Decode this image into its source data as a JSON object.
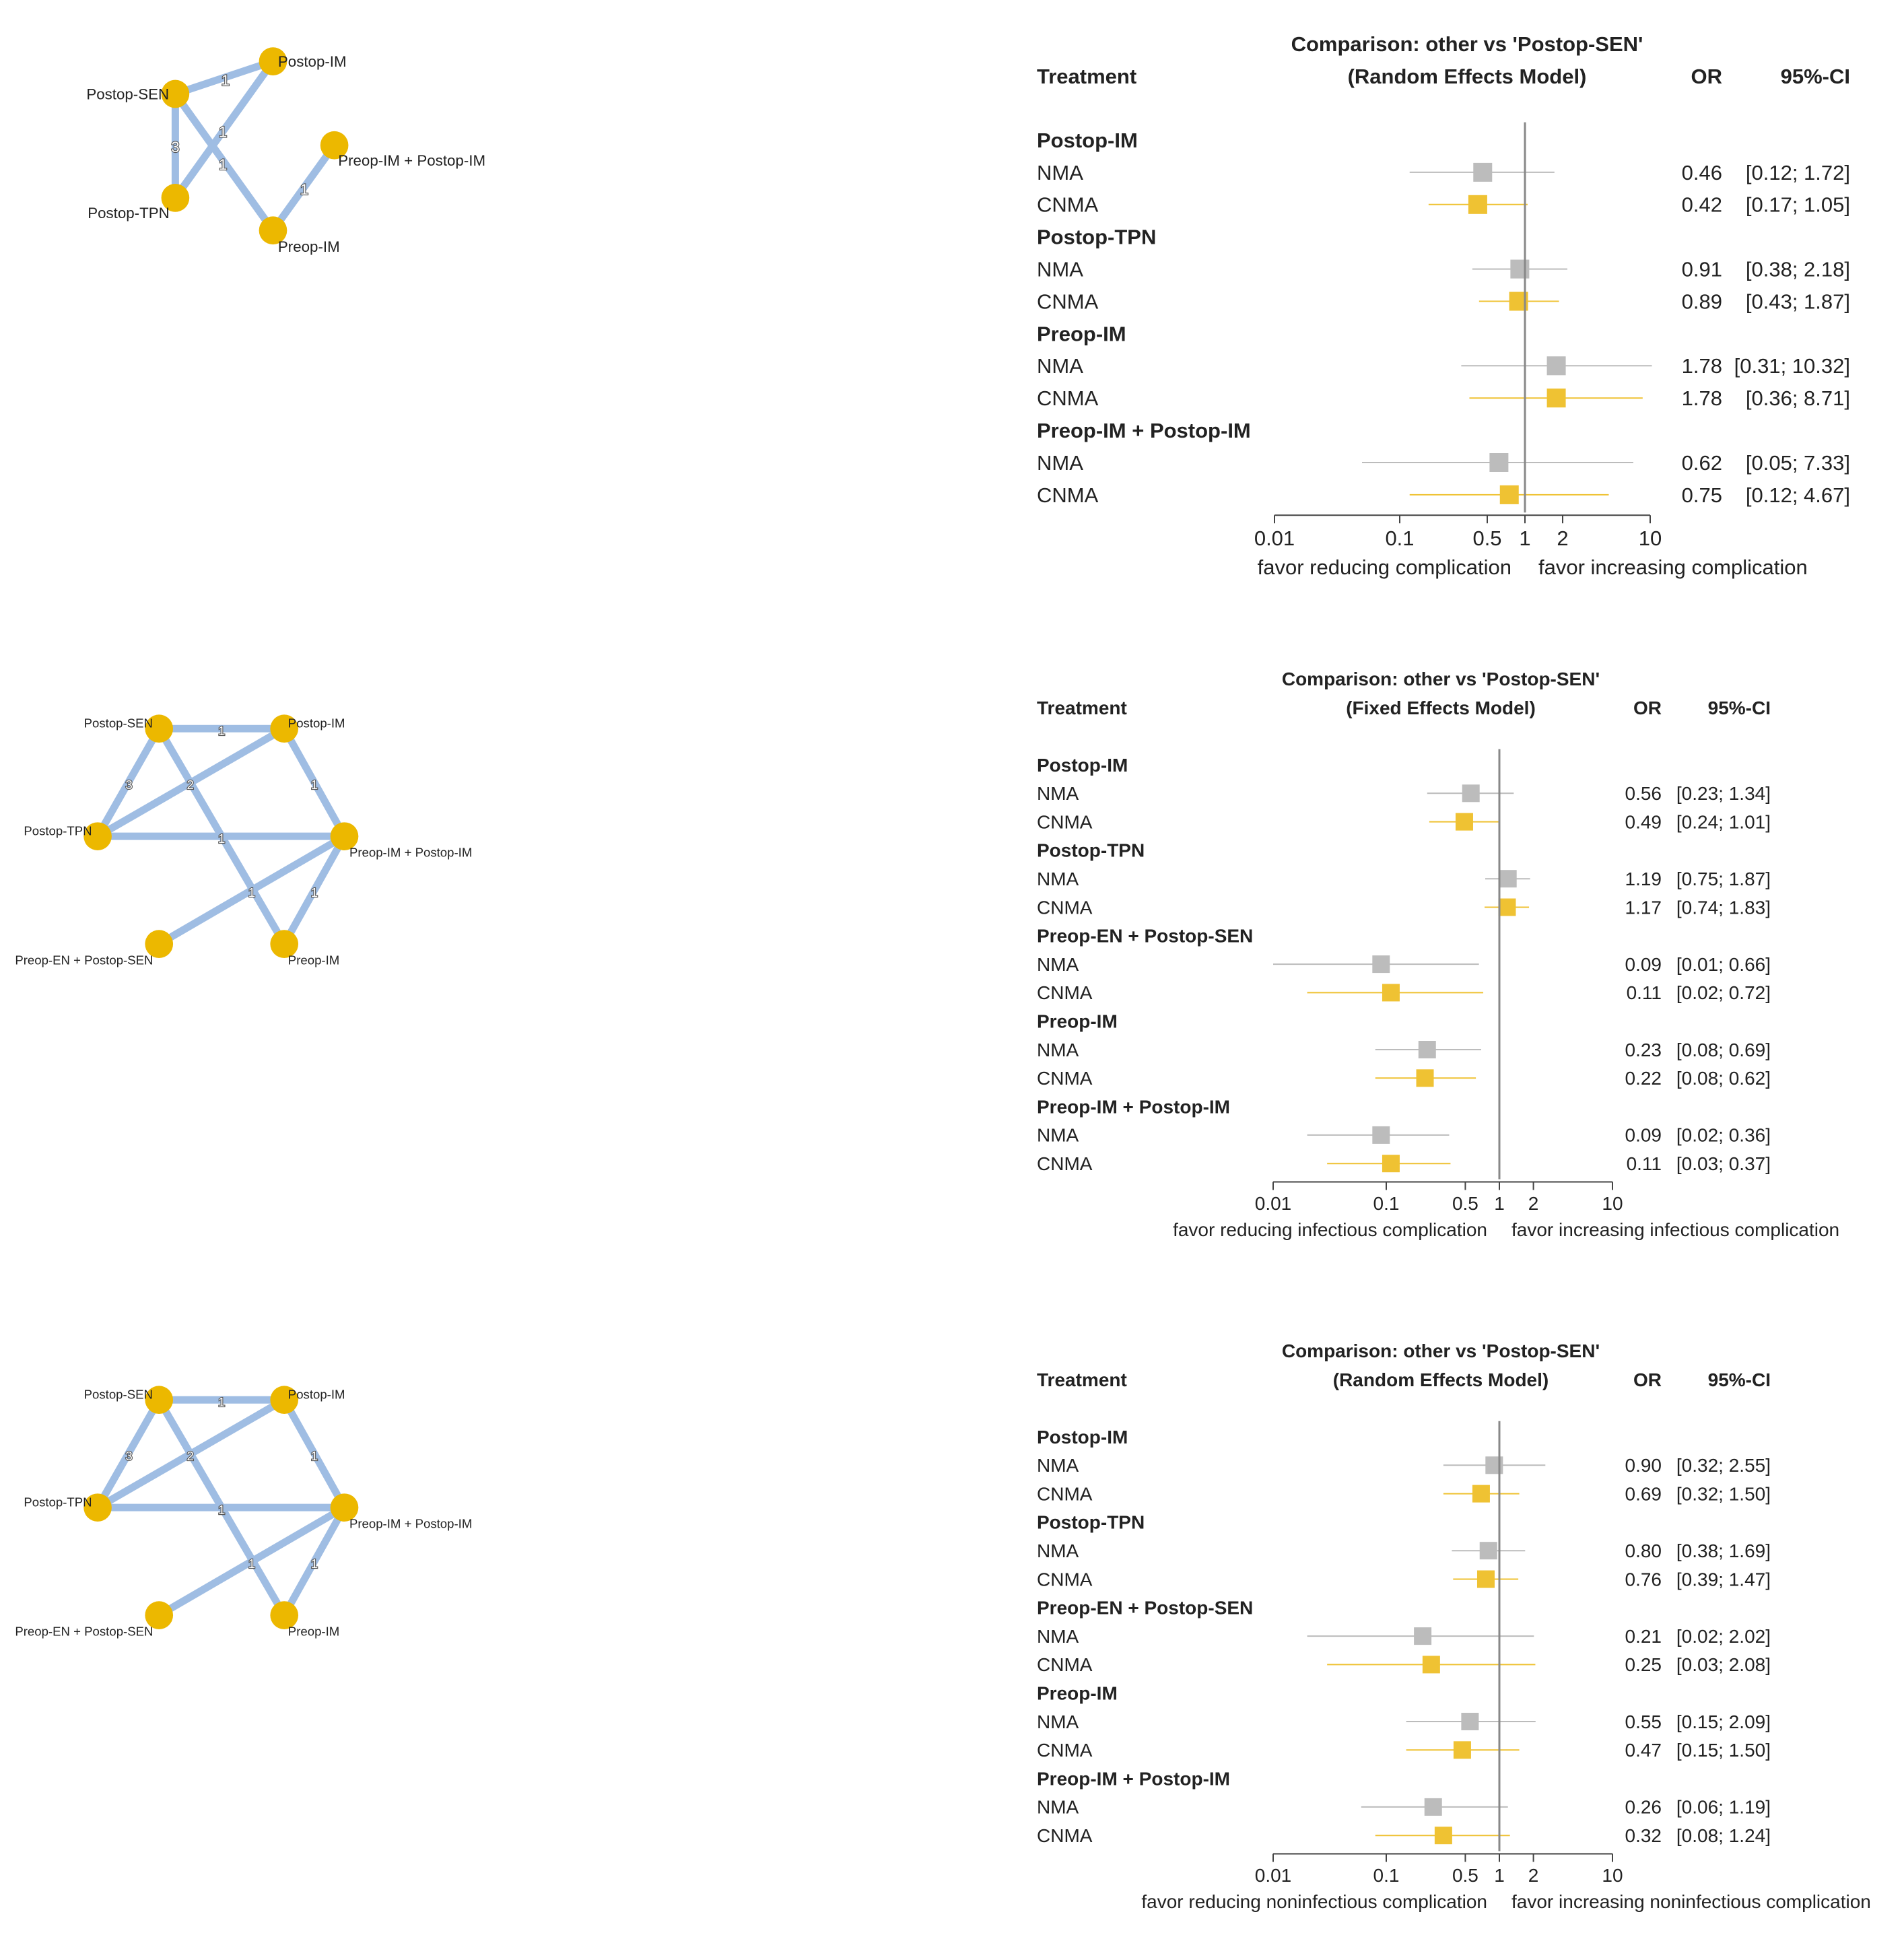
{
  "colors": {
    "edge": "#9fbde3",
    "node": "#ecb800",
    "nma": "#bcbcbc",
    "cnma": "#efc233",
    "axis": "#444444",
    "ref_line": "#888888",
    "text": "#222222"
  },
  "chart_data": [
    {
      "type": "network",
      "panel": "A",
      "nodes": [
        "Postop-SEN",
        "Postop-IM",
        "Postop-TPN",
        "Preop-IM",
        "Preop-IM + Postop-IM"
      ],
      "edges": [
        {
          "from": "Postop-SEN",
          "to": "Postop-IM",
          "label": "1"
        },
        {
          "from": "Postop-SEN",
          "to": "Postop-TPN",
          "label": "3"
        },
        {
          "from": "Postop-SEN",
          "to": "Preop-IM",
          "label": "1"
        },
        {
          "from": "Postop-TPN",
          "to": "Postop-IM",
          "label": "1"
        },
        {
          "from": "Preop-IM",
          "to": "Preop-IM + Postop-IM",
          "label": "1"
        }
      ]
    },
    {
      "type": "forest",
      "panel": "A",
      "title": "Comparison: other vs 'Postop-SEN'",
      "subtitle": "(Random Effects Model)",
      "col_treatment": "Treatment",
      "col_or": "OR",
      "col_ci": "95%-CI",
      "xscale": "log",
      "xlim": [
        0.01,
        10
      ],
      "xticks": [
        "0.01",
        "0.1",
        "0.5",
        "1",
        "2",
        "10"
      ],
      "xlabel_left": "favor reducing complication",
      "xlabel_right": "favor increasing complication",
      "groups": [
        {
          "name": "Postop-IM",
          "rows": [
            {
              "method": "NMA",
              "or": 0.46,
              "lo": 0.12,
              "hi": 1.72,
              "or_text": "0.46",
              "ci_text": "[0.12;  1.72]"
            },
            {
              "method": "CNMA",
              "or": 0.42,
              "lo": 0.17,
              "hi": 1.05,
              "or_text": "0.42",
              "ci_text": "[0.17;  1.05]"
            }
          ]
        },
        {
          "name": "Postop-TPN",
          "rows": [
            {
              "method": "NMA",
              "or": 0.91,
              "lo": 0.38,
              "hi": 2.18,
              "or_text": "0.91",
              "ci_text": "[0.38;  2.18]"
            },
            {
              "method": "CNMA",
              "or": 0.89,
              "lo": 0.43,
              "hi": 1.87,
              "or_text": "0.89",
              "ci_text": "[0.43;  1.87]"
            }
          ]
        },
        {
          "name": "Preop-IM",
          "rows": [
            {
              "method": "NMA",
              "or": 1.78,
              "lo": 0.31,
              "hi": 10.32,
              "or_text": "1.78",
              "ci_text": "[0.31; 10.32]"
            },
            {
              "method": "CNMA",
              "or": 1.78,
              "lo": 0.36,
              "hi": 8.71,
              "or_text": "1.78",
              "ci_text": "[0.36;  8.71]"
            }
          ]
        },
        {
          "name": "Preop-IM + Postop-IM",
          "rows": [
            {
              "method": "NMA",
              "or": 0.62,
              "lo": 0.05,
              "hi": 7.33,
              "or_text": "0.62",
              "ci_text": "[0.05;  7.33]"
            },
            {
              "method": "CNMA",
              "or": 0.75,
              "lo": 0.12,
              "hi": 4.67,
              "or_text": "0.75",
              "ci_text": "[0.12;  4.67]"
            }
          ]
        }
      ]
    },
    {
      "type": "network",
      "panel": "B",
      "nodes": [
        "Postop-SEN",
        "Postop-IM",
        "Postop-TPN",
        "Preop-IM + Postop-IM",
        "Preop-EN + Postop-SEN",
        "Preop-IM"
      ],
      "edges": [
        {
          "from": "Postop-SEN",
          "to": "Postop-IM",
          "label": "1"
        },
        {
          "from": "Postop-SEN",
          "to": "Postop-TPN",
          "label": "3"
        },
        {
          "from": "Postop-SEN",
          "to": "Preop-IM",
          "label": "1"
        },
        {
          "from": "Postop-TPN",
          "to": "Postop-IM",
          "label": "2"
        },
        {
          "from": "Postop-TPN",
          "to": "Preop-IM + Postop-IM",
          "label": "1"
        },
        {
          "from": "Postop-IM",
          "to": "Preop-IM + Postop-IM",
          "label": "1"
        },
        {
          "from": "Preop-EN + Postop-SEN",
          "to": "Preop-IM + Postop-IM",
          "label": "1"
        },
        {
          "from": "Preop-IM",
          "to": "Preop-IM + Postop-IM",
          "label": "1"
        }
      ]
    },
    {
      "type": "forest",
      "panel": "B",
      "title": "Comparison: other vs 'Postop-SEN'",
      "subtitle": "(Fixed Effects Model)",
      "col_treatment": "Treatment",
      "col_or": "OR",
      "col_ci": "95%-CI",
      "xscale": "log",
      "xlim": [
        0.01,
        10
      ],
      "xticks": [
        "0.01",
        "0.1",
        "0.5",
        "1",
        "2",
        "10"
      ],
      "xlabel_left": "favor reducing infectious complication",
      "xlabel_right": "favor increasing infectious complication",
      "groups": [
        {
          "name": "Postop-IM",
          "rows": [
            {
              "method": "NMA",
              "or": 0.56,
              "lo": 0.23,
              "hi": 1.34,
              "or_text": "0.56",
              "ci_text": "[0.23; 1.34]"
            },
            {
              "method": "CNMA",
              "or": 0.49,
              "lo": 0.24,
              "hi": 1.01,
              "or_text": "0.49",
              "ci_text": "[0.24; 1.01]"
            }
          ]
        },
        {
          "name": "Postop-TPN",
          "rows": [
            {
              "method": "NMA",
              "or": 1.19,
              "lo": 0.75,
              "hi": 1.87,
              "or_text": "1.19",
              "ci_text": "[0.75; 1.87]"
            },
            {
              "method": "CNMA",
              "or": 1.17,
              "lo": 0.74,
              "hi": 1.83,
              "or_text": "1.17",
              "ci_text": "[0.74; 1.83]"
            }
          ]
        },
        {
          "name": "Preop-EN + Postop-SEN",
          "rows": [
            {
              "method": "NMA",
              "or": 0.09,
              "lo": 0.01,
              "hi": 0.66,
              "or_text": "0.09",
              "ci_text": "[0.01; 0.66]"
            },
            {
              "method": "CNMA",
              "or": 0.11,
              "lo": 0.02,
              "hi": 0.72,
              "or_text": "0.11",
              "ci_text": "[0.02; 0.72]"
            }
          ]
        },
        {
          "name": "Preop-IM",
          "rows": [
            {
              "method": "NMA",
              "or": 0.23,
              "lo": 0.08,
              "hi": 0.69,
              "or_text": "0.23",
              "ci_text": "[0.08; 0.69]"
            },
            {
              "method": "CNMA",
              "or": 0.22,
              "lo": 0.08,
              "hi": 0.62,
              "or_text": "0.22",
              "ci_text": "[0.08; 0.62]"
            }
          ]
        },
        {
          "name": "Preop-IM + Postop-IM",
          "rows": [
            {
              "method": "NMA",
              "or": 0.09,
              "lo": 0.02,
              "hi": 0.36,
              "or_text": "0.09",
              "ci_text": "[0.02; 0.36]"
            },
            {
              "method": "CNMA",
              "or": 0.11,
              "lo": 0.03,
              "hi": 0.37,
              "or_text": "0.11",
              "ci_text": "[0.03; 0.37]"
            }
          ]
        }
      ]
    },
    {
      "type": "network",
      "panel": "C",
      "nodes": [
        "Postop-SEN",
        "Postop-IM",
        "Postop-TPN",
        "Preop-IM + Postop-IM",
        "Preop-EN + Postop-SEN",
        "Preop-IM"
      ],
      "edges": [
        {
          "from": "Postop-SEN",
          "to": "Postop-IM",
          "label": "1"
        },
        {
          "from": "Postop-SEN",
          "to": "Postop-TPN",
          "label": "3"
        },
        {
          "from": "Postop-SEN",
          "to": "Preop-IM",
          "label": "1"
        },
        {
          "from": "Postop-TPN",
          "to": "Postop-IM",
          "label": "2"
        },
        {
          "from": "Postop-TPN",
          "to": "Preop-IM + Postop-IM",
          "label": "1"
        },
        {
          "from": "Postop-IM",
          "to": "Preop-IM + Postop-IM",
          "label": "1"
        },
        {
          "from": "Preop-EN + Postop-SEN",
          "to": "Preop-IM + Postop-IM",
          "label": "1"
        },
        {
          "from": "Preop-IM",
          "to": "Preop-IM + Postop-IM",
          "label": "1"
        }
      ]
    },
    {
      "type": "forest",
      "panel": "C",
      "title": "Comparison: other vs 'Postop-SEN'",
      "subtitle": "(Random Effects Model)",
      "col_treatment": "Treatment",
      "col_or": "OR",
      "col_ci": "95%-CI",
      "xscale": "log",
      "xlim": [
        0.01,
        10
      ],
      "xticks": [
        "0.01",
        "0.1",
        "0.5",
        "1",
        "2",
        "10"
      ],
      "xlabel_left": "favor reducing noninfectious complication",
      "xlabel_right": "favor increasing noninfectious complication",
      "groups": [
        {
          "name": "Postop-IM",
          "rows": [
            {
              "method": "NMA",
              "or": 0.9,
              "lo": 0.32,
              "hi": 2.55,
              "or_text": "0.90",
              "ci_text": "[0.32; 2.55]"
            },
            {
              "method": "CNMA",
              "or": 0.69,
              "lo": 0.32,
              "hi": 1.5,
              "or_text": "0.69",
              "ci_text": "[0.32; 1.50]"
            }
          ]
        },
        {
          "name": "Postop-TPN",
          "rows": [
            {
              "method": "NMA",
              "or": 0.8,
              "lo": 0.38,
              "hi": 1.69,
              "or_text": "0.80",
              "ci_text": "[0.38; 1.69]"
            },
            {
              "method": "CNMA",
              "or": 0.76,
              "lo": 0.39,
              "hi": 1.47,
              "or_text": "0.76",
              "ci_text": "[0.39; 1.47]"
            }
          ]
        },
        {
          "name": "Preop-EN + Postop-SEN",
          "rows": [
            {
              "method": "NMA",
              "or": 0.21,
              "lo": 0.02,
              "hi": 2.02,
              "or_text": "0.21",
              "ci_text": "[0.02; 2.02]"
            },
            {
              "method": "CNMA",
              "or": 0.25,
              "lo": 0.03,
              "hi": 2.08,
              "or_text": "0.25",
              "ci_text": "[0.03; 2.08]"
            }
          ]
        },
        {
          "name": "Preop-IM",
          "rows": [
            {
              "method": "NMA",
              "or": 0.55,
              "lo": 0.15,
              "hi": 2.09,
              "or_text": "0.55",
              "ci_text": "[0.15; 2.09]"
            },
            {
              "method": "CNMA",
              "or": 0.47,
              "lo": 0.15,
              "hi": 1.5,
              "or_text": "0.47",
              "ci_text": "[0.15; 1.50]"
            }
          ]
        },
        {
          "name": "Preop-IM + Postop-IM",
          "rows": [
            {
              "method": "NMA",
              "or": 0.26,
              "lo": 0.06,
              "hi": 1.19,
              "or_text": "0.26",
              "ci_text": "[0.06; 1.19]"
            },
            {
              "method": "CNMA",
              "or": 0.32,
              "lo": 0.08,
              "hi": 1.24,
              "or_text": "0.32",
              "ci_text": "[0.08; 1.24]"
            }
          ]
        }
      ]
    }
  ]
}
